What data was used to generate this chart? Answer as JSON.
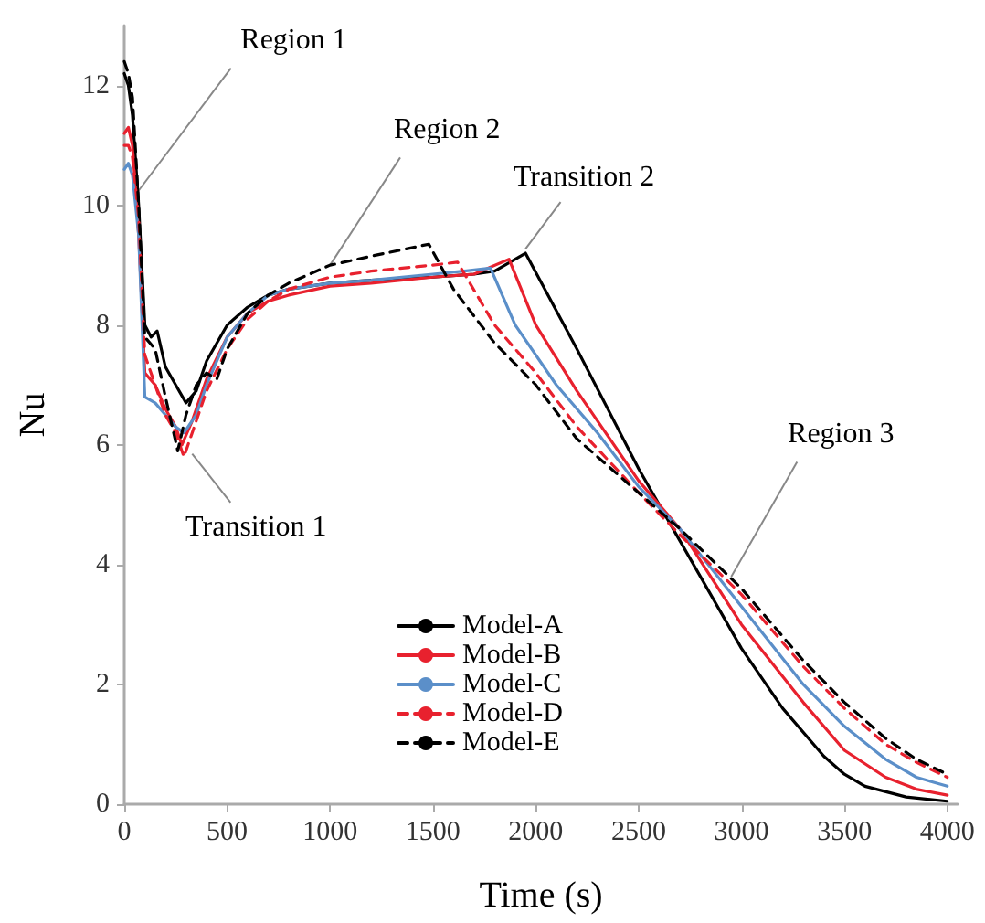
{
  "chart_data": {
    "type": "line",
    "xlabel": "Time (s)",
    "ylabel": "Nu",
    "xlim": [
      0,
      4050
    ],
    "xticks": [
      0,
      500,
      1000,
      1500,
      2000,
      2500,
      3000,
      3500,
      4000
    ],
    "ylim": [
      0,
      13
    ],
    "yticks": [
      0,
      2,
      4,
      6,
      8,
      10,
      12
    ],
    "grid": false,
    "legend": "bottom",
    "marker": "none",
    "annotations": [
      {
        "text": "Region 1",
        "x": 60,
        "y": 10.2
      },
      {
        "text": "Region 2",
        "x": 1000,
        "y": 9.0
      },
      {
        "text": "Transition 2",
        "x": 1950,
        "y": 9.27
      },
      {
        "text": "Transition 1",
        "x": 330,
        "y": 5.85
      },
      {
        "text": "Region 3",
        "x": 2950,
        "y": 3.8
      }
    ],
    "series": [
      {
        "name": "Model-A",
        "color": "#000000",
        "line_style": "solid",
        "x": [
          0,
          20,
          40,
          70,
          100,
          130,
          160,
          200,
          250,
          300,
          350,
          400,
          500,
          600,
          700,
          800,
          1000,
          1200,
          1500,
          1700,
          1800,
          1950,
          2200,
          2500,
          2700,
          3000,
          3200,
          3400,
          3500,
          3600,
          3800,
          4000
        ],
        "values": [
          12.2,
          12.0,
          11.5,
          10,
          8,
          7.8,
          7.9,
          7.3,
          7,
          6.7,
          6.9,
          7.4,
          8.0,
          8.3,
          8.5,
          8.6,
          8.7,
          8.75,
          8.8,
          8.85,
          8.9,
          9.2,
          7.6,
          5.6,
          4.4,
          2.6,
          1.6,
          0.8,
          0.5,
          0.3,
          0.12,
          0.05
        ]
      },
      {
        "name": "Model-B",
        "color": "#e8212e",
        "line_style": "solid",
        "x": [
          0,
          20,
          40,
          70,
          100,
          150,
          200,
          250,
          280,
          330,
          400,
          500,
          600,
          700,
          800,
          1000,
          1200,
          1500,
          1700,
          1870,
          2000,
          2200,
          2500,
          2700,
          3000,
          3300,
          3500,
          3700,
          3850,
          4000
        ],
        "values": [
          11.2,
          11.3,
          11,
          9.5,
          7.2,
          7.0,
          6.6,
          6.3,
          6.0,
          6.4,
          7.1,
          7.8,
          8.2,
          8.4,
          8.5,
          8.65,
          8.7,
          8.8,
          8.85,
          9.1,
          8.0,
          6.9,
          5.4,
          4.6,
          3.0,
          1.7,
          0.9,
          0.45,
          0.25,
          0.15
        ]
      },
      {
        "name": "Model-C",
        "color": "#5b8fc9",
        "line_style": "solid",
        "x": [
          0,
          20,
          40,
          70,
          100,
          150,
          200,
          250,
          290,
          350,
          400,
          500,
          600,
          700,
          800,
          1000,
          1200,
          1500,
          1650,
          1780,
          1900,
          2100,
          2300,
          2500,
          2700,
          3000,
          3300,
          3500,
          3700,
          3850,
          4000
        ],
        "values": [
          10.6,
          10.7,
          10.5,
          9.5,
          6.8,
          6.7,
          6.5,
          6.3,
          6.2,
          6.5,
          7.0,
          7.8,
          8.2,
          8.5,
          8.6,
          8.7,
          8.75,
          8.85,
          8.9,
          8.95,
          8.0,
          7.0,
          6.2,
          5.3,
          4.6,
          3.3,
          2.0,
          1.3,
          0.75,
          0.45,
          0.3
        ]
      },
      {
        "name": "Model-D",
        "color": "#e8212e",
        "line_style": "dashed",
        "x": [
          0,
          20,
          40,
          70,
          100,
          150,
          200,
          250,
          290,
          330,
          400,
          500,
          600,
          700,
          800,
          1000,
          1200,
          1500,
          1620,
          1800,
          2000,
          2200,
          2500,
          2700,
          3000,
          3300,
          3500,
          3700,
          3850,
          4000
        ],
        "values": [
          11.0,
          11.0,
          10.8,
          9.8,
          7.5,
          7.0,
          6.5,
          6.2,
          5.8,
          6.2,
          6.9,
          7.6,
          8.1,
          8.4,
          8.6,
          8.8,
          8.9,
          9.0,
          9.05,
          8.0,
          7.2,
          6.3,
          5.2,
          4.5,
          3.5,
          2.3,
          1.6,
          1.0,
          0.7,
          0.45
        ]
      },
      {
        "name": "Model-E",
        "color": "#000000",
        "line_style": "dashed",
        "x": [
          0,
          20,
          40,
          70,
          100,
          150,
          200,
          260,
          300,
          350,
          400,
          450,
          500,
          600,
          700,
          800,
          1000,
          1200,
          1480,
          1600,
          1800,
          2000,
          2200,
          2500,
          2700,
          3000,
          3300,
          3500,
          3700,
          3850,
          4000
        ],
        "values": [
          12.4,
          12.2,
          11.8,
          10,
          7.8,
          7.6,
          6.8,
          5.9,
          6.5,
          7.0,
          7.2,
          7.1,
          7.6,
          8.2,
          8.5,
          8.7,
          9.0,
          9.15,
          9.35,
          8.6,
          7.7,
          7.0,
          6.1,
          5.2,
          4.6,
          3.6,
          2.4,
          1.7,
          1.1,
          0.75,
          0.5
        ]
      }
    ]
  }
}
